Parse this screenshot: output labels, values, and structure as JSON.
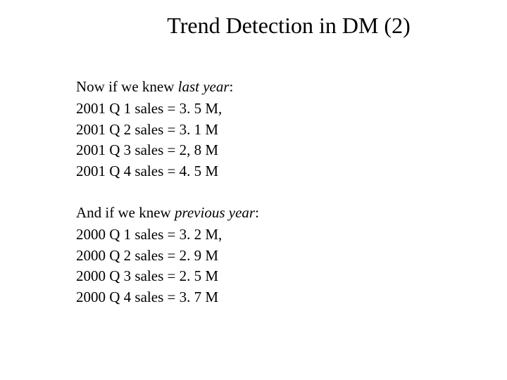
{
  "title": "Trend Detection in DM (2)",
  "section1": {
    "intro_prefix": "Now if we knew ",
    "intro_italic": "last year",
    "intro_suffix": ":",
    "lines": [
      "2001 Q 1 sales = 3. 5 M,",
      "2001 Q 2 sales = 3. 1 M",
      "2001 Q 3 sales = 2, 8 M",
      "2001 Q 4 sales = 4. 5 M"
    ]
  },
  "section2": {
    "intro_prefix": "And if we knew ",
    "intro_italic": "previous year",
    "intro_suffix": ":",
    "lines": [
      "2000 Q 1 sales = 3. 2 M,",
      "2000 Q 2 sales = 2. 9 M",
      "2000 Q 3 sales = 2. 5 M",
      "2000 Q 4 sales = 3. 7 M"
    ]
  },
  "colors": {
    "background": "#ffffff",
    "text": "#000000"
  },
  "typography": {
    "font_family": "Times New Roman",
    "title_fontsize": 32,
    "body_fontsize": 21
  }
}
